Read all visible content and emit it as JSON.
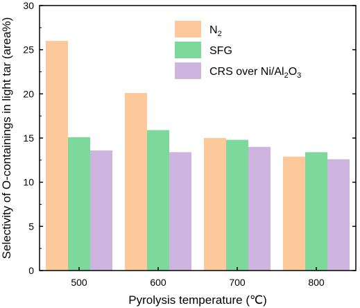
{
  "chart_data": {
    "type": "bar",
    "xlabel": "Pyrolysis temperature (℃)",
    "ylabel": "Selectivity of O-containings in light tar (area%)",
    "ylim": [
      0,
      30
    ],
    "yticks": [
      0,
      5,
      10,
      15,
      20,
      25,
      30
    ],
    "categories": [
      "500",
      "600",
      "700",
      "800"
    ],
    "series": [
      {
        "name": "N2",
        "color": "#FDC99B",
        "values": [
          26.0,
          20.1,
          15.0,
          12.9
        ]
      },
      {
        "name": "SFG",
        "color": "#7DD99B",
        "values": [
          15.1,
          15.9,
          14.8,
          13.4
        ]
      },
      {
        "name": "CRS over Ni/Al2O3",
        "color": "#CDB5DF",
        "values": [
          13.6,
          13.4,
          14.0,
          12.6
        ]
      }
    ],
    "legend": {
      "placement": "top-right",
      "entries": [
        {
          "parts": [
            {
              "t": "N"
            },
            {
              "t": "2",
              "sub": true
            }
          ]
        },
        {
          "parts": [
            {
              "t": "SFG"
            }
          ]
        },
        {
          "parts": [
            {
              "t": "CRS over Ni/Al"
            },
            {
              "t": "2",
              "sub": true
            },
            {
              "t": "O"
            },
            {
              "t": "3",
              "sub": true
            }
          ]
        }
      ]
    },
    "grid": false
  }
}
